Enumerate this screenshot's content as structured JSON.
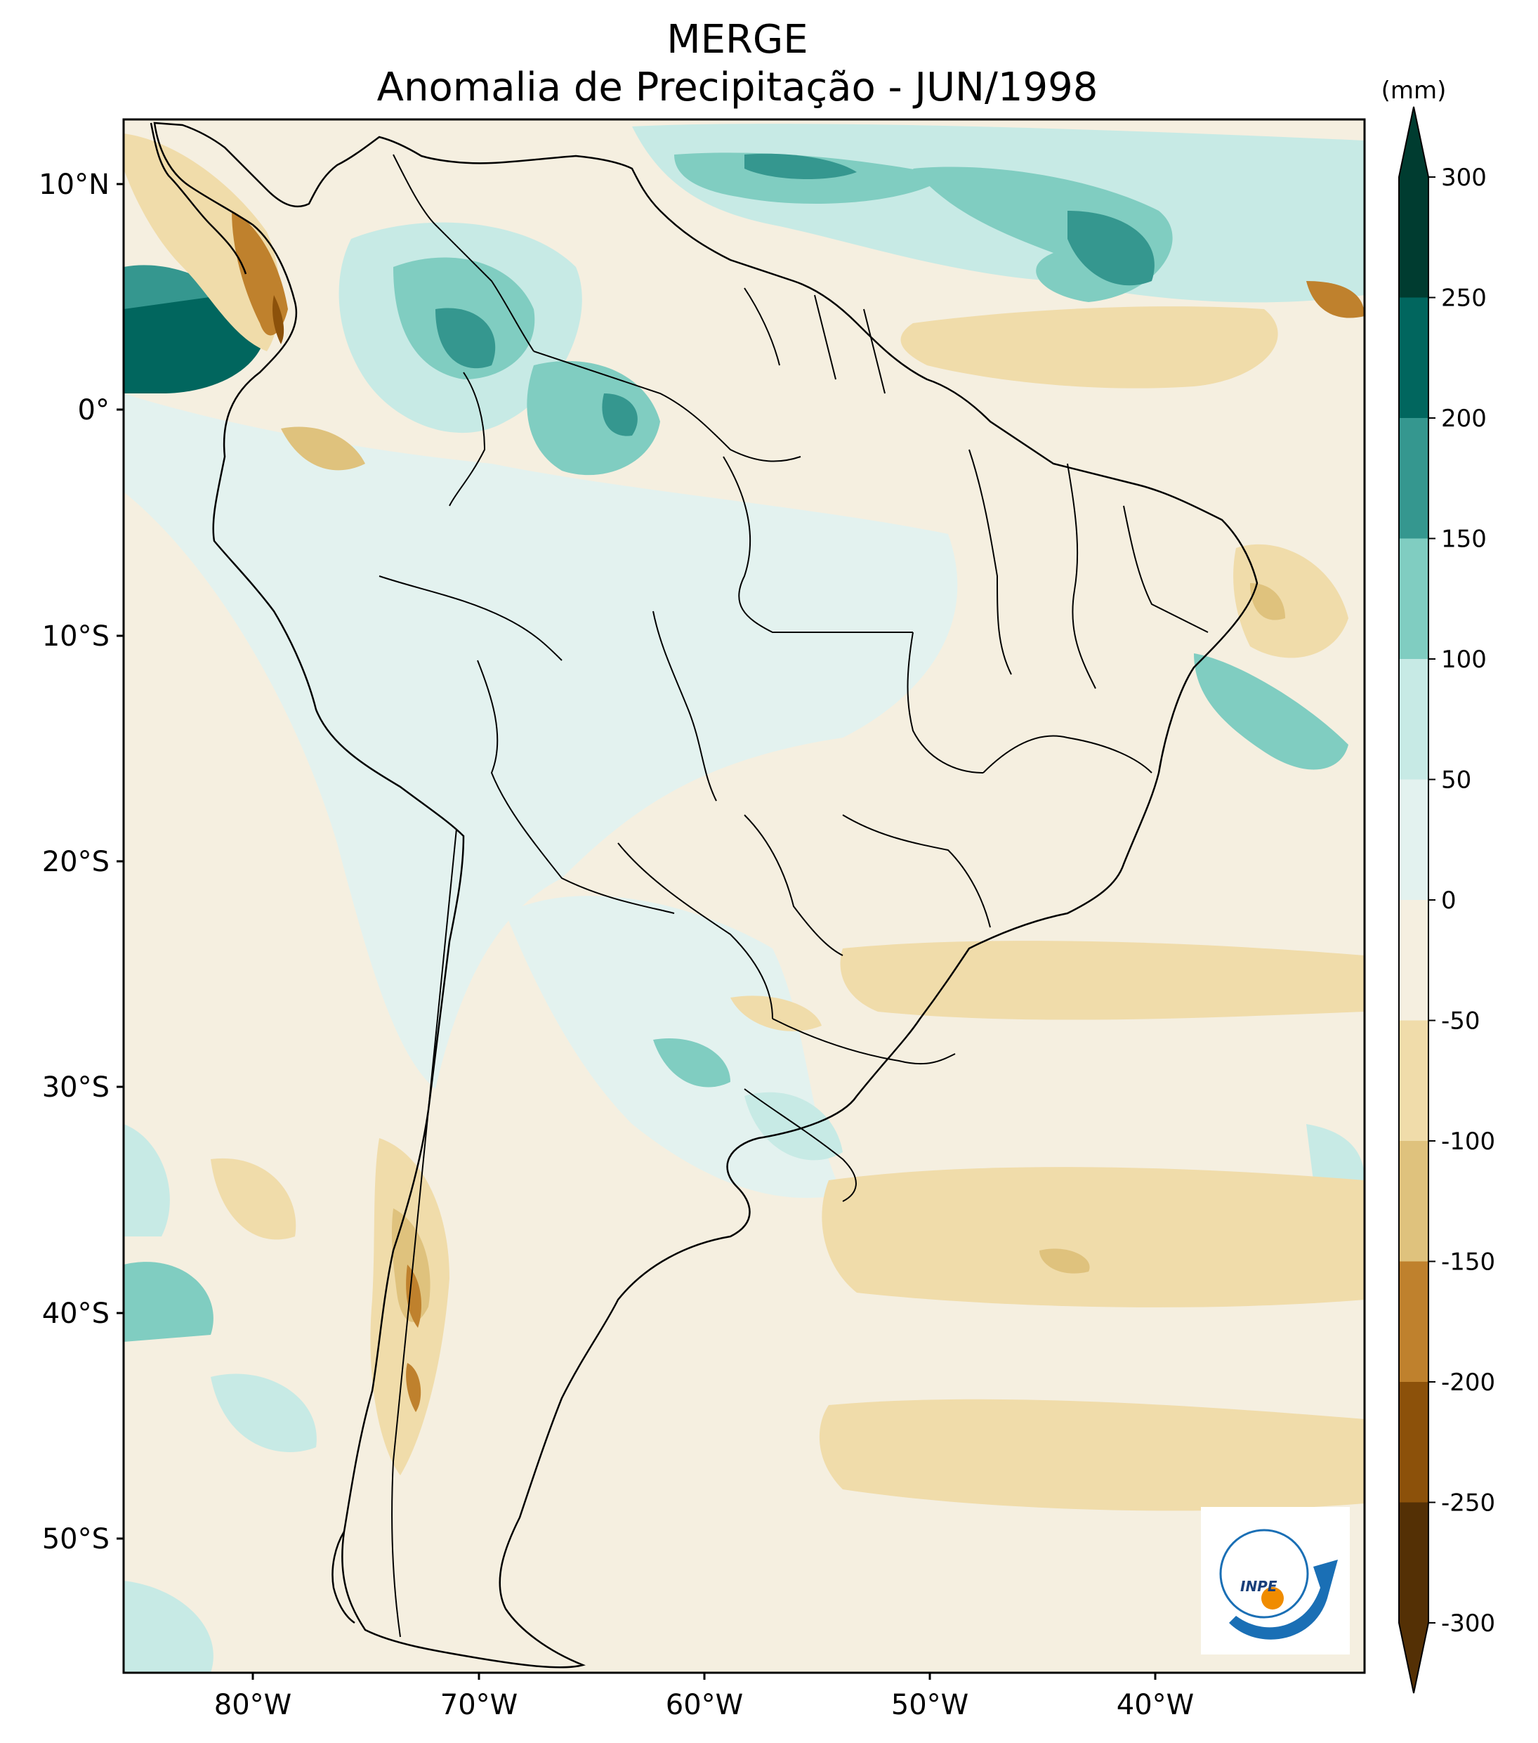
{
  "title": "MERGE",
  "subtitle": "Anomalia de Precipitação - JUN/1998",
  "colorbar": {
    "unit": "(mm)",
    "ticks": [
      "300",
      "250",
      "200",
      "150",
      "100",
      "50",
      "0",
      "-50",
      "-100",
      "-150",
      "-200",
      "-250",
      "-300"
    ],
    "colors": [
      "#003c30",
      "#01665e",
      "#35978f",
      "#80cdc1",
      "#c7eae5",
      "#e3f2ef",
      "#f5efe0",
      "#f0dcaa",
      "#dfc27d",
      "#bf812d",
      "#8c510a",
      "#543005"
    ]
  },
  "map": {
    "lon_ticks": [
      "80°W",
      "70°W",
      "60°W",
      "50°W",
      "40°W"
    ],
    "lat_ticks": [
      "10°N",
      "0°",
      "10°S",
      "20°S",
      "30°S",
      "40°S",
      "50°S"
    ],
    "background": "#f5efe0"
  },
  "logo": {
    "text": "INPE"
  }
}
